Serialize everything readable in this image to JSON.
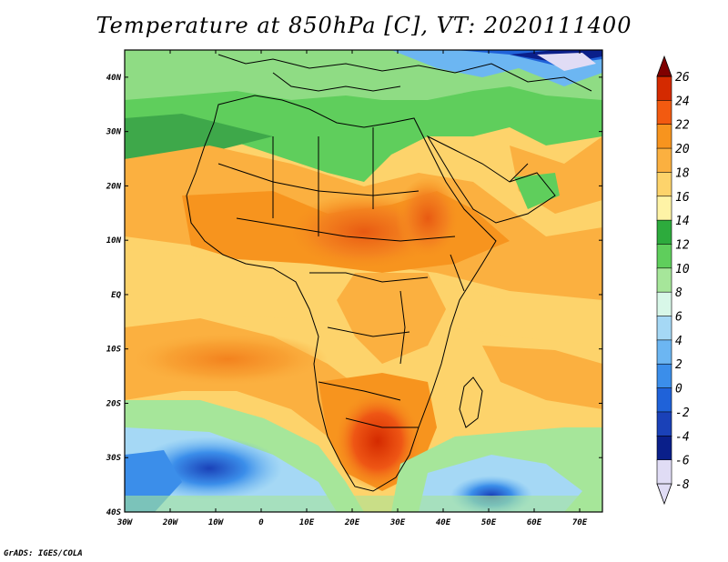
{
  "title": "Temperature at 850hPa [C], VT: 2020111400",
  "credit": "GrADS: IGES/COLA",
  "map": {
    "lon_range": [
      -30,
      75
    ],
    "lat_range": [
      -40,
      45
    ],
    "x_ticks": [
      "30W",
      "20W",
      "10W",
      "0",
      "10E",
      "20E",
      "30E",
      "40E",
      "50E",
      "60E",
      "70E"
    ],
    "y_ticks": [
      "40N",
      "30N",
      "20N",
      "10N",
      "EQ",
      "10S",
      "20S",
      "30S",
      "40S"
    ]
  },
  "colorbar": {
    "labels": [
      "26",
      "24",
      "22",
      "20",
      "18",
      "16",
      "14",
      "12",
      "10",
      "8",
      "6",
      "4",
      "2",
      "0",
      "-2",
      "-4",
      "-6",
      "-8"
    ],
    "colors": [
      "#7f0000",
      "#d42a00",
      "#f25a10",
      "#f7941e",
      "#fbb040",
      "#fdd36b",
      "#fef3a6",
      "#2dab3d",
      "#5fce5c",
      "#a6e69a",
      "#d8f7e8",
      "#a5d8f5",
      "#6cb6f2",
      "#3b8eea",
      "#1f62d9",
      "#1a41b8",
      "#0a1f8a",
      "#e0dcf5"
    ],
    "level_keys": [
      "v26",
      "v24",
      "v22",
      "v20",
      "v18",
      "v16",
      "v14",
      "v12",
      "v10",
      "v8",
      "v6",
      "v4",
      "v2",
      "v0",
      "vm2",
      "vm4",
      "vm6",
      "vm8"
    ]
  }
}
